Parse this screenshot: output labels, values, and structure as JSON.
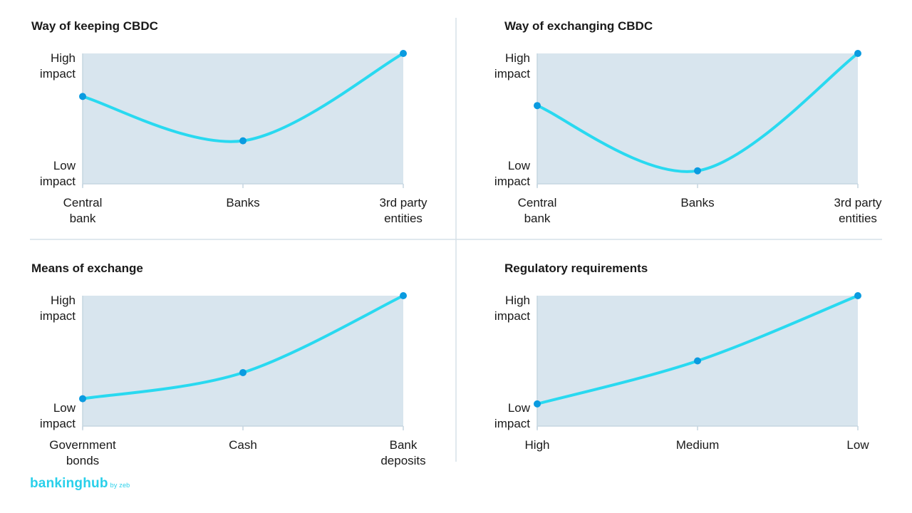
{
  "brand": {
    "name_a": "banking",
    "name_b": "hub",
    "suffix": "by zeb",
    "color": "#29d0ea"
  },
  "colors": {
    "plot_bg": "#d8e5ee",
    "line": "#29d9f0",
    "point": "#0a9be0"
  },
  "chart_data": [
    {
      "type": "line",
      "title": "Way of keeping CBDC",
      "yticks": [
        [
          "High",
          "impact"
        ],
        [
          "Low",
          "impact"
        ]
      ],
      "categories": [
        [
          "Central",
          "bank"
        ],
        [
          "Banks"
        ],
        [
          "3rd party",
          "entities"
        ]
      ],
      "values": [
        0.67,
        0.33,
        1.0
      ],
      "ylim": [
        0,
        1
      ]
    },
    {
      "type": "line",
      "title": "Way of exchanging CBDC",
      "yticks": [
        [
          "High",
          "impact"
        ],
        [
          "Low",
          "impact"
        ]
      ],
      "categories": [
        [
          "Central",
          "bank"
        ],
        [
          "Banks"
        ],
        [
          "3rd party",
          "entities"
        ]
      ],
      "values": [
        0.6,
        0.1,
        1.0
      ],
      "ylim": [
        0,
        1
      ]
    },
    {
      "type": "line",
      "title": "Means of exchange",
      "yticks": [
        [
          "High",
          "impact"
        ],
        [
          "Low",
          "impact"
        ]
      ],
      "categories": [
        [
          "Government",
          "bonds"
        ],
        [
          "Cash"
        ],
        [
          "Bank",
          "deposits"
        ]
      ],
      "values": [
        0.21,
        0.41,
        1.0
      ],
      "ylim": [
        0,
        1
      ]
    },
    {
      "type": "line",
      "title": "Regulatory requirements",
      "yticks": [
        [
          "High",
          "impact"
        ],
        [
          "Low",
          "impact"
        ]
      ],
      "categories": [
        [
          "High"
        ],
        [
          "Medium"
        ],
        [
          "Low"
        ]
      ],
      "values": [
        0.17,
        0.5,
        1.0
      ],
      "ylim": [
        0,
        1
      ]
    }
  ]
}
